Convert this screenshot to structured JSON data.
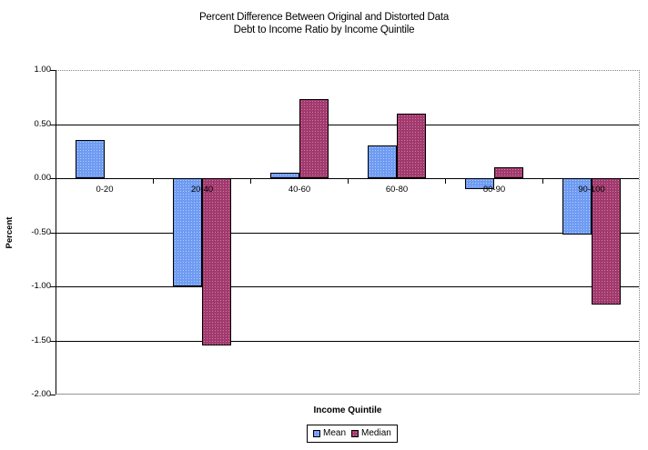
{
  "title": {
    "line1": "Percent Difference Between Original and Distorted Data",
    "line2": "Debt to Income Ratio by Income Quintile"
  },
  "chart_data": {
    "type": "bar",
    "title": "Percent Difference Between Original and Distorted Data",
    "subtitle": "Debt to Income Ratio by Income Quintile",
    "categories": [
      "0-20",
      "20-40",
      "40-60",
      "60-80",
      "80-90",
      "90-100"
    ],
    "series": [
      {
        "name": "Mean",
        "fill": "#6F9BF2",
        "dot": "#AFCCFB",
        "values": [
          0.35,
          -1.0,
          0.05,
          0.3,
          -0.1,
          -0.52
        ]
      },
      {
        "name": "Median",
        "fill": "#A23A6D",
        "dot": "#C97FA6",
        "values": [
          0.0,
          -1.55,
          0.73,
          0.6,
          0.1,
          -1.17
        ]
      }
    ],
    "xlabel": "Income Quintile",
    "ylabel": "Percent",
    "ylim": [
      -2.0,
      1.0
    ],
    "ytick_labels": [
      "1.00",
      "0.50",
      "0.00",
      "-0.50",
      "-1.00",
      "-1.50",
      "-2.00"
    ],
    "grid": true,
    "gridline_color": "#000000",
    "frame_color": "#848484",
    "legend_position": "bottom",
    "legend_labels": [
      "Mean",
      "Median"
    ]
  }
}
